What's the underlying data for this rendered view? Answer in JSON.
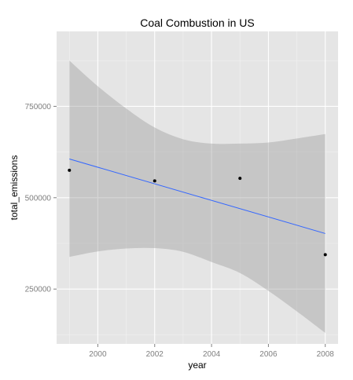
{
  "chart_data": {
    "type": "scatter",
    "title": "Coal Combustion in US",
    "xlabel": "year",
    "ylabel": "total_emissions",
    "x_ticks": [
      2000,
      2002,
      2004,
      2006,
      2008
    ],
    "x_tick_labels": [
      "2000",
      "2002",
      "2004",
      "2006",
      "2008"
    ],
    "y_ticks": [
      250000,
      500000,
      750000
    ],
    "y_tick_labels": [
      "250000",
      "500000",
      "750000"
    ],
    "xlim": [
      1998.55,
      2008.45
    ],
    "ylim": [
      100000,
      955000
    ],
    "grid": true,
    "series": [
      {
        "type": "scatter",
        "x": [
          1999,
          2002,
          2005,
          2008
        ],
        "y": [
          575000,
          546000,
          553000,
          344000
        ],
        "color": "#000000"
      },
      {
        "type": "line",
        "x": [
          1999,
          2008
        ],
        "y": [
          606000,
          402000
        ],
        "color": "#3366ff"
      }
    ],
    "confidence_band": {
      "x": [
        1999,
        2000,
        2001,
        2002,
        2003,
        2004,
        2005,
        2006,
        2007,
        2008
      ],
      "upper": [
        875000,
        805000,
        744000,
        692000,
        660000,
        648000,
        648000,
        651000,
        662000,
        674000
      ],
      "lower": [
        338000,
        353000,
        361000,
        362000,
        352000,
        324000,
        294000,
        245000,
        189000,
        130000
      ],
      "color": "#999999"
    },
    "colors": {
      "panel_background": "#e5e5e5",
      "grid_major": "#ffffff",
      "grid_minor": "#f2f2f2"
    }
  }
}
